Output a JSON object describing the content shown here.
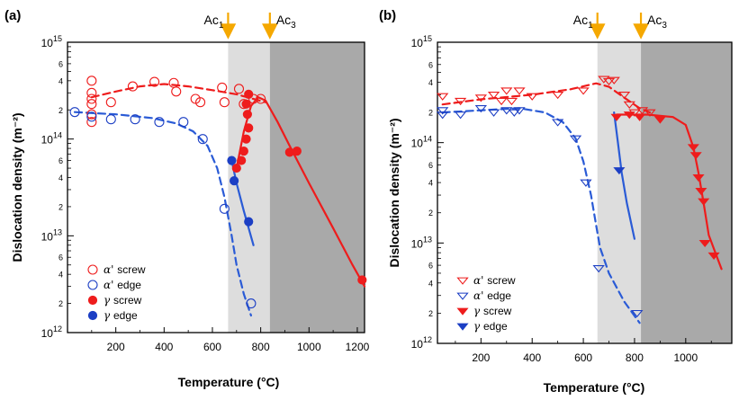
{
  "colors": {
    "red": "#ee1c1c",
    "blue": "#1c3fc4",
    "fit_blue": "#2a5bd6",
    "ac_arrow": "#f5a800",
    "zone_light": "#dddddd",
    "zone_dark": "#a9a9a9"
  },
  "chart_data": [
    {
      "type": "scatter",
      "panel_label": "(a)",
      "xlabel": "Temperature (°C)",
      "ylabel": "Dislocation density (m⁻²)",
      "xlim": [
        0,
        1230
      ],
      "ylim": [
        1000000000000.0,
        1000000000000000.0
      ],
      "yscale": "log",
      "x_ticks": [
        200,
        400,
        600,
        800,
        1000,
        1200
      ],
      "critical_temperatures": [
        {
          "name": "Ac1",
          "base": "Ac",
          "sub": "1",
          "value": 665
        },
        {
          "name": "Ac3",
          "base": "Ac",
          "sub": "3",
          "value": 838
        }
      ],
      "legend": {
        "position": "bottom-left"
      },
      "series": [
        {
          "name": "α' screw",
          "legend_main": "α'",
          "legend_suffix": "screw",
          "marker": "circle",
          "filled": false,
          "color": "red",
          "points": [
            [
              100,
              400000000000000.0
            ],
            [
              100,
              300000000000000.0
            ],
            [
              100,
              260000000000000.0
            ],
            [
              100,
              230000000000000.0
            ],
            [
              100,
              180000000000000.0
            ],
            [
              100,
              150000000000000.0
            ],
            [
              180,
              240000000000000.0
            ],
            [
              270,
              350000000000000.0
            ],
            [
              360,
              390000000000000.0
            ],
            [
              440,
              380000000000000.0
            ],
            [
              450,
              310000000000000.0
            ],
            [
              530,
              260000000000000.0
            ],
            [
              550,
              240000000000000.0
            ],
            [
              640,
              340000000000000.0
            ],
            [
              650,
              240000000000000.0
            ],
            [
              710,
              330000000000000.0
            ],
            [
              730,
              230000000000000.0
            ],
            [
              770,
              260000000000000.0
            ],
            [
              800,
              260000000000000.0
            ]
          ],
          "fit": [
            [
              100,
              270000000000000.0
            ],
            [
              200,
              310000000000000.0
            ],
            [
              300,
              350000000000000.0
            ],
            [
              400,
              370000000000000.0
            ],
            [
              500,
              350000000000000.0
            ],
            [
              600,
              320000000000000.0
            ],
            [
              700,
              290000000000000.0
            ],
            [
              820,
              240000000000000.0
            ]
          ]
        },
        {
          "name": "α' edge",
          "legend_main": "α'",
          "legend_suffix": "edge",
          "marker": "circle",
          "filled": false,
          "color": "blue",
          "points": [
            [
              30,
              190000000000000.0
            ],
            [
              100,
              170000000000000.0
            ],
            [
              180,
              160000000000000.0
            ],
            [
              280,
              160000000000000.0
            ],
            [
              380,
              150000000000000.0
            ],
            [
              480,
              150000000000000.0
            ],
            [
              560,
              100000000000000.0
            ],
            [
              650,
              19000000000000.0
            ],
            [
              760,
              2000000000000.0
            ]
          ],
          "fit": [
            [
              30,
              190000000000000.0
            ],
            [
              200,
              180000000000000.0
            ],
            [
              350,
              165000000000000.0
            ],
            [
              450,
              145000000000000.0
            ],
            [
              520,
              120000000000000.0
            ],
            [
              580,
              85000000000000.0
            ],
            [
              620,
              50000000000000.0
            ],
            [
              650,
              25000000000000.0
            ],
            [
              680,
              10000000000000.0
            ],
            [
              700,
              5000000000000.0
            ],
            [
              730,
              2500000000000.0
            ],
            [
              760,
              1500000000000.0
            ]
          ]
        },
        {
          "name": "γ screw",
          "legend_main": "γ",
          "legend_suffix": "screw",
          "marker": "circle",
          "filled": true,
          "color": "red",
          "points": [
            [
              700,
              50000000000000.0
            ],
            [
              720,
              60000000000000.0
            ],
            [
              730,
              75000000000000.0
            ],
            [
              740,
              100000000000000.0
            ],
            [
              750,
              130000000000000.0
            ],
            [
              745,
              180000000000000.0
            ],
            [
              740,
              230000000000000.0
            ],
            [
              750,
              290000000000000.0
            ],
            [
              920,
              73000000000000.0
            ],
            [
              950,
              75000000000000.0
            ],
            [
              1220,
              3500000000000.0
            ]
          ],
          "fit": [
            [
              700,
              50000000000000.0
            ],
            [
              730,
              120000000000000.0
            ],
            [
              760,
              220000000000000.0
            ],
            [
              790,
              270000000000000.0
            ],
            [
              820,
              250000000000000.0
            ],
            [
              870,
              150000000000000.0
            ],
            [
              920,
              85000000000000.0
            ],
            [
              1000,
              35000000000000.0
            ],
            [
              1100,
              12000000000000.0
            ],
            [
              1180,
              5000000000000.0
            ],
            [
              1230,
              3000000000000.0
            ]
          ]
        },
        {
          "name": "γ edge",
          "legend_main": "γ",
          "legend_suffix": "edge",
          "marker": "circle",
          "filled": true,
          "color": "blue",
          "points": [
            [
              680,
              60000000000000.0
            ],
            [
              690,
              37000000000000.0
            ],
            [
              750,
              14000000000000.0
            ]
          ],
          "fit": [
            [
              680,
              60000000000000.0
            ],
            [
              700,
              35000000000000.0
            ],
            [
              730,
              18000000000000.0
            ],
            [
              770,
              8000000000000.0
            ]
          ]
        }
      ]
    },
    {
      "type": "scatter",
      "panel_label": "(b)",
      "xlabel": "Temperature (°C)",
      "ylabel": "Dislocation density (m⁻²)",
      "xlim": [
        30,
        1180
      ],
      "ylim": [
        1000000000000.0,
        1000000000000000.0
      ],
      "yscale": "log",
      "x_ticks": [
        200,
        400,
        600,
        800,
        1000,
        1200
      ],
      "critical_temperatures": [
        {
          "name": "Ac1",
          "base": "Ac",
          "sub": "1",
          "value": 655
        },
        {
          "name": "Ac3",
          "base": "Ac",
          "sub": "3",
          "value": 825
        }
      ],
      "legend": {
        "position": "bottom-left"
      },
      "series": [
        {
          "name": "α' screw",
          "legend_main": "α'",
          "legend_suffix": "screw",
          "marker": "triangle-down",
          "filled": false,
          "color": "red",
          "points": [
            [
              50,
              290000000000000.0
            ],
            [
              120,
              260000000000000.0
            ],
            [
              200,
              280000000000000.0
            ],
            [
              250,
              300000000000000.0
            ],
            [
              280,
              260000000000000.0
            ],
            [
              300,
              330000000000000.0
            ],
            [
              320,
              260000000000000.0
            ],
            [
              350,
              330000000000000.0
            ],
            [
              400,
              290000000000000.0
            ],
            [
              500,
              300000000000000.0
            ],
            [
              600,
              330000000000000.0
            ],
            [
              680,
              430000000000000.0
            ],
            [
              700,
              410000000000000.0
            ],
            [
              720,
              420000000000000.0
            ],
            [
              760,
              300000000000000.0
            ],
            [
              780,
              240000000000000.0
            ],
            [
              800,
              200000000000000.0
            ],
            [
              830,
              210000000000000.0
            ],
            [
              860,
              200000000000000.0
            ]
          ],
          "fit": [
            [
              50,
              240000000000000.0
            ],
            [
              200,
              270000000000000.0
            ],
            [
              400,
              300000000000000.0
            ],
            [
              550,
              340000000000000.0
            ],
            [
              650,
              390000000000000.0
            ],
            [
              700,
              360000000000000.0
            ],
            [
              760,
              280000000000000.0
            ],
            [
              820,
              220000000000000.0
            ],
            [
              860,
              200000000000000.0
            ]
          ]
        },
        {
          "name": "α' edge",
          "legend_main": "α'",
          "legend_suffix": "edge",
          "marker": "triangle-down",
          "filled": false,
          "color": "blue",
          "points": [
            [
              50,
              210000000000000.0
            ],
            [
              50,
              190000000000000.0
            ],
            [
              120,
              190000000000000.0
            ],
            [
              200,
              220000000000000.0
            ],
            [
              250,
              200000000000000.0
            ],
            [
              300,
              210000000000000.0
            ],
            [
              330,
              200000000000000.0
            ],
            [
              350,
              210000000000000.0
            ],
            [
              500,
              160000000000000.0
            ],
            [
              570,
              110000000000000.0
            ],
            [
              610,
              40000000000000.0
            ],
            [
              660,
              5600000000000.0
            ],
            [
              810,
              2000000000000.0
            ]
          ],
          "fit": [
            [
              50,
              200000000000000.0
            ],
            [
              200,
              210000000000000.0
            ],
            [
              350,
              220000000000000.0
            ],
            [
              450,
              200000000000000.0
            ],
            [
              520,
              160000000000000.0
            ],
            [
              570,
              110000000000000.0
            ],
            [
              600,
              65000000000000.0
            ],
            [
              630,
              30000000000000.0
            ],
            [
              650,
              15000000000000.0
            ],
            [
              665,
              9000000000000.0
            ],
            [
              700,
              5000000000000.0
            ],
            [
              760,
              2600000000000.0
            ],
            [
              820,
              1600000000000.0
            ]
          ]
        },
        {
          "name": "γ screw",
          "legend_main": "γ",
          "legend_suffix": "screw",
          "marker": "triangle-down",
          "filled": true,
          "color": "red",
          "points": [
            [
              730,
              180000000000000.0
            ],
            [
              780,
              190000000000000.0
            ],
            [
              820,
              180000000000000.0
            ],
            [
              900,
              170000000000000.0
            ],
            [
              1030,
              90000000000000.0
            ],
            [
              1040,
              75000000000000.0
            ],
            [
              1050,
              45000000000000.0
            ],
            [
              1060,
              33000000000000.0
            ],
            [
              1070,
              26000000000000.0
            ],
            [
              1075,
              10000000000000.0
            ],
            [
              1110,
              7500000000000.0
            ]
          ],
          "fit": [
            [
              730,
              190000000000000.0
            ],
            [
              850,
              190000000000000.0
            ],
            [
              950,
              180000000000000.0
            ],
            [
              1000,
              150000000000000.0
            ],
            [
              1030,
              90000000000000.0
            ],
            [
              1050,
              50000000000000.0
            ],
            [
              1070,
              25000000000000.0
            ],
            [
              1090,
              12000000000000.0
            ],
            [
              1120,
              7500000000000.0
            ],
            [
              1140,
              5500000000000.0
            ]
          ]
        },
        {
          "name": "γ edge",
          "legend_main": "γ",
          "legend_suffix": "edge",
          "marker": "triangle-down",
          "filled": true,
          "color": "blue",
          "points": [
            [
              740,
              53000000000000.0
            ]
          ],
          "fit": [
            [
              720,
              200000000000000.0
            ],
            [
              735,
              100000000000000.0
            ],
            [
              750,
              50000000000000.0
            ],
            [
              770,
              25000000000000.0
            ],
            [
              800,
              11000000000000.0
            ]
          ]
        }
      ]
    }
  ]
}
